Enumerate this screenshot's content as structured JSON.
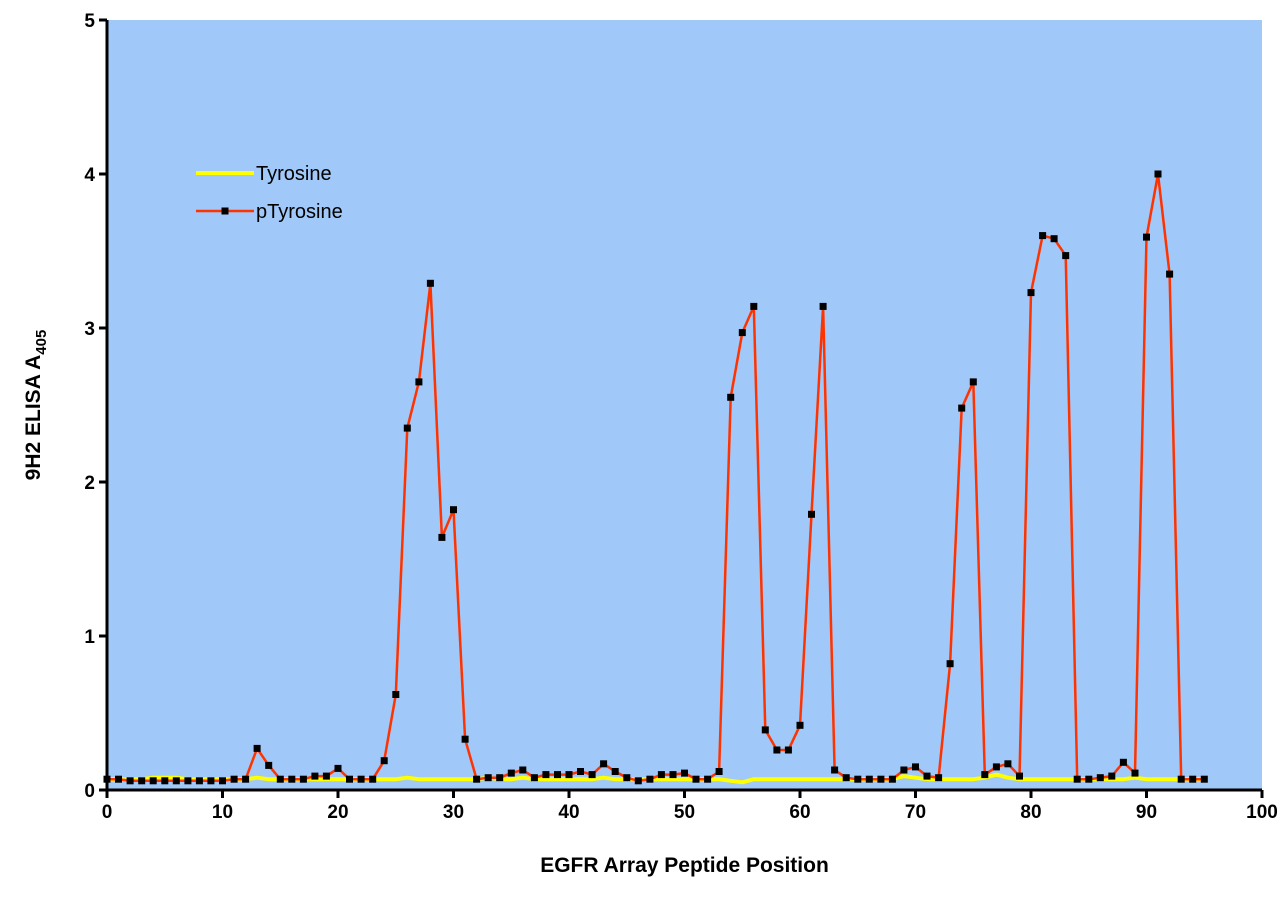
{
  "chart_data": {
    "type": "line",
    "title": "",
    "xlabel": "EGFR Array Peptide Position",
    "ylabel_main": "9H2 ELISA A",
    "ylabel_sub": "405",
    "xlim": [
      0,
      100
    ],
    "ylim": [
      0,
      5
    ],
    "x_ticks": [
      "0",
      "10",
      "20",
      "30",
      "40",
      "50",
      "60",
      "70",
      "80",
      "90",
      "100"
    ],
    "y_ticks": [
      "0",
      "1",
      "2",
      "3",
      "4",
      "5"
    ],
    "plot_background": "#a0c8f8",
    "grid": false,
    "legend_position": "top-left",
    "series": [
      {
        "name": "Tyrosine",
        "color": "#ffff00",
        "markers": false,
        "x": [
          0,
          1,
          2,
          3,
          4,
          5,
          6,
          7,
          8,
          9,
          10,
          11,
          12,
          13,
          14,
          15,
          16,
          17,
          18,
          19,
          20,
          21,
          22,
          23,
          24,
          25,
          26,
          27,
          28,
          29,
          30,
          31,
          32,
          33,
          34,
          35,
          36,
          37,
          38,
          39,
          40,
          41,
          42,
          43,
          44,
          45,
          46,
          47,
          48,
          49,
          50,
          51,
          52,
          53,
          54,
          55,
          56,
          57,
          58,
          59,
          60,
          61,
          62,
          63,
          64,
          65,
          66,
          67,
          68,
          69,
          70,
          71,
          72,
          73,
          74,
          75,
          76,
          77,
          78,
          79,
          80,
          81,
          82,
          83,
          84,
          85,
          86,
          87,
          88,
          89,
          90,
          91,
          92,
          93,
          94,
          95
        ],
        "values": [
          0.07,
          0.07,
          0.07,
          0.07,
          0.08,
          0.08,
          0.08,
          0.07,
          0.07,
          0.07,
          0.07,
          0.07,
          0.07,
          0.08,
          0.07,
          0.07,
          0.07,
          0.07,
          0.07,
          0.07,
          0.07,
          0.07,
          0.07,
          0.07,
          0.07,
          0.07,
          0.08,
          0.07,
          0.07,
          0.07,
          0.07,
          0.07,
          0.07,
          0.08,
          0.07,
          0.07,
          0.08,
          0.07,
          0.07,
          0.07,
          0.07,
          0.07,
          0.07,
          0.08,
          0.07,
          0.07,
          0.07,
          0.07,
          0.07,
          0.07,
          0.07,
          0.07,
          0.07,
          0.07,
          0.06,
          0.05,
          0.07,
          0.07,
          0.07,
          0.07,
          0.07,
          0.07,
          0.07,
          0.07,
          0.07,
          0.07,
          0.07,
          0.07,
          0.07,
          0.09,
          0.08,
          0.07,
          0.07,
          0.07,
          0.07,
          0.07,
          0.08,
          0.1,
          0.08,
          0.07,
          0.07,
          0.07,
          0.07,
          0.07,
          0.07,
          0.07,
          0.07,
          0.07,
          0.07,
          0.08,
          0.07,
          0.07,
          0.07,
          0.07,
          0.07,
          0.07
        ]
      },
      {
        "name": "pTyrosine",
        "color": "#ff3300",
        "markers": true,
        "x": [
          0,
          1,
          2,
          3,
          4,
          5,
          6,
          7,
          8,
          9,
          10,
          11,
          12,
          13,
          14,
          15,
          16,
          17,
          18,
          19,
          20,
          21,
          22,
          23,
          24,
          25,
          26,
          27,
          28,
          29,
          30,
          31,
          32,
          33,
          34,
          35,
          36,
          37,
          38,
          39,
          40,
          41,
          42,
          43,
          44,
          45,
          46,
          47,
          48,
          49,
          50,
          51,
          52,
          53,
          54,
          55,
          56,
          57,
          58,
          59,
          60,
          61,
          62,
          63,
          64,
          65,
          66,
          67,
          68,
          69,
          70,
          71,
          72,
          73,
          74,
          75,
          76,
          77,
          78,
          79,
          80,
          81,
          82,
          83,
          84,
          85,
          86,
          87,
          88,
          89,
          90,
          91,
          92,
          93,
          94,
          95
        ],
        "values": [
          0.07,
          0.07,
          0.06,
          0.06,
          0.06,
          0.06,
          0.06,
          0.06,
          0.06,
          0.06,
          0.06,
          0.07,
          0.07,
          0.27,
          0.16,
          0.07,
          0.07,
          0.07,
          0.09,
          0.09,
          0.14,
          0.07,
          0.07,
          0.07,
          0.19,
          0.62,
          2.35,
          2.65,
          3.29,
          1.64,
          1.82,
          0.33,
          0.07,
          0.08,
          0.08,
          0.11,
          0.13,
          0.08,
          0.1,
          0.1,
          0.1,
          0.12,
          0.1,
          0.17,
          0.12,
          0.08,
          0.06,
          0.07,
          0.1,
          0.1,
          0.11,
          0.07,
          0.07,
          0.12,
          2.55,
          2.97,
          3.14,
          0.39,
          0.26,
          0.26,
          0.42,
          1.79,
          3.14,
          0.13,
          0.08,
          0.07,
          0.07,
          0.07,
          0.07,
          0.13,
          0.15,
          0.09,
          0.08,
          0.82,
          2.48,
          2.65,
          0.1,
          0.15,
          0.17,
          0.09,
          3.23,
          3.6,
          3.58,
          3.47,
          0.07,
          0.07,
          0.08,
          0.09,
          0.18,
          0.11,
          3.59,
          4.0,
          3.35,
          0.07,
          0.07,
          0.07
        ]
      }
    ]
  }
}
